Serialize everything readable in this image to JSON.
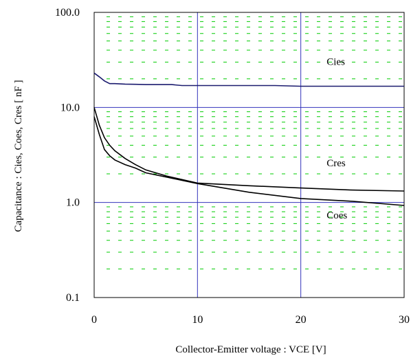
{
  "chart_data": {
    "type": "line",
    "title": "",
    "xlabel": "Collector-Emitter voltage : VCE [V]",
    "ylabel": "Capacitance  :  Cies, Coes, Cres  [ nF ]",
    "xlim": [
      0,
      30
    ],
    "ylim": [
      0.1,
      100
    ],
    "y_scale": "log",
    "x_ticks": [
      0,
      10,
      20,
      30
    ],
    "x_tick_labels": [
      "0",
      "10",
      "20",
      "30"
    ],
    "y_ticks": [
      0.1,
      1,
      10,
      100
    ],
    "y_tick_labels": [
      "0.1",
      "1.0",
      "10.0",
      "100.0"
    ],
    "grid": true,
    "legend": "none",
    "series": [
      {
        "name": "Cies",
        "color": "#1a1a6e",
        "x": [
          0,
          0.5,
          1,
          1.5,
          2,
          3,
          4,
          5,
          7.5,
          8.5,
          10,
          15,
          17.5,
          20,
          25,
          30
        ],
        "y": [
          23,
          21,
          19,
          17.8,
          17.8,
          17.6,
          17.5,
          17.4,
          17.4,
          17.0,
          17.0,
          17.0,
          17.0,
          16.7,
          16.7,
          16.7
        ]
      },
      {
        "name": "Cres",
        "color": "#000000",
        "x": [
          0,
          0.5,
          1,
          1.5,
          2,
          3,
          4,
          5,
          7,
          10,
          15,
          20,
          25,
          30
        ],
        "y": [
          10,
          6.5,
          4.8,
          4.0,
          3.5,
          2.9,
          2.5,
          2.2,
          1.9,
          1.6,
          1.5,
          1.42,
          1.35,
          1.32
        ]
      },
      {
        "name": "Coes",
        "color": "#000000",
        "x": [
          0,
          0.5,
          1,
          1.5,
          2,
          3,
          4,
          5,
          7,
          10,
          15,
          20,
          25,
          30
        ],
        "y": [
          8,
          5.2,
          3.6,
          3.1,
          2.8,
          2.5,
          2.3,
          2.05,
          1.85,
          1.58,
          1.28,
          1.1,
          1.03,
          0.93
        ]
      }
    ],
    "annotations": [
      {
        "text": "Cies",
        "x": 22.5,
        "y": 28
      },
      {
        "text": "Cres",
        "x": 22.5,
        "y": 2.4
      },
      {
        "text": "Coes",
        "x": 22.5,
        "y": 0.68
      }
    ],
    "colors": {
      "major_grid": "#3333bb",
      "minor_grid": "#00cc00",
      "frame": "#000000"
    }
  }
}
